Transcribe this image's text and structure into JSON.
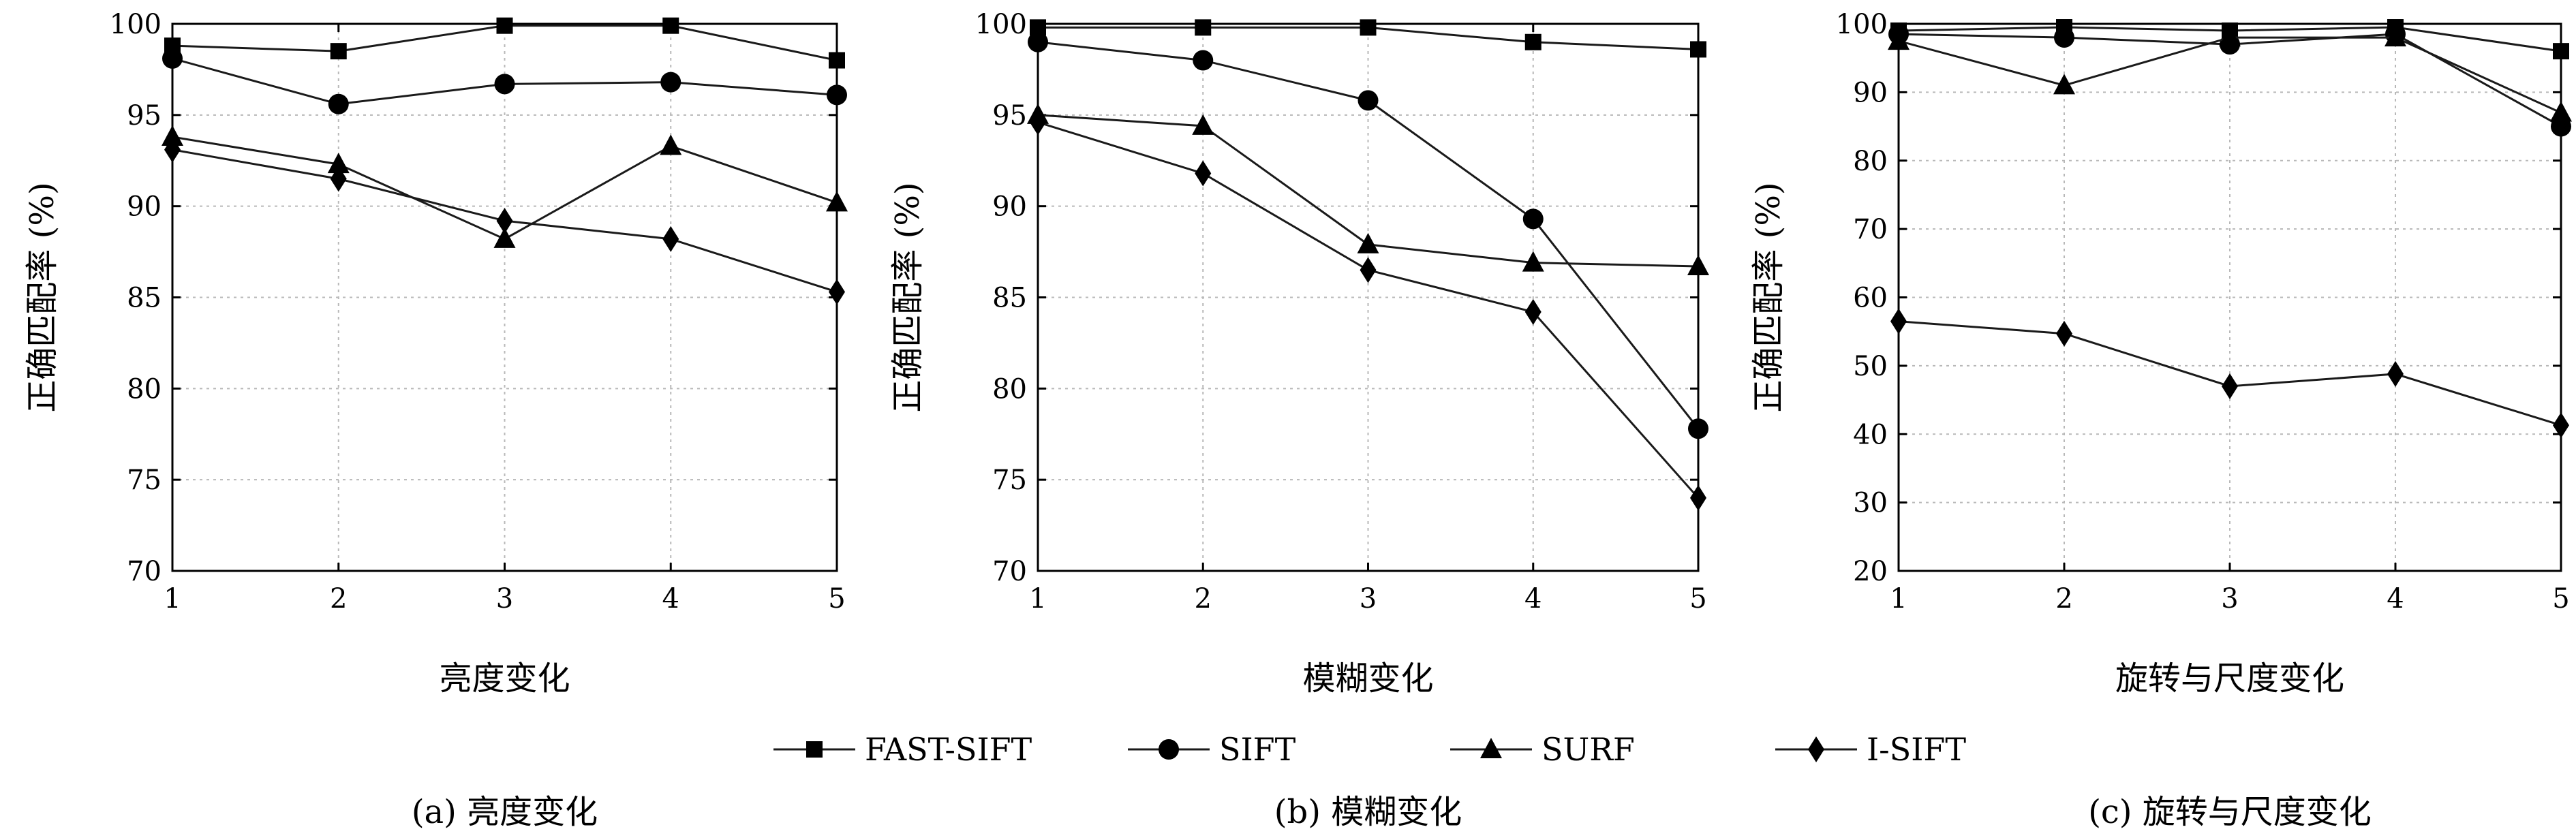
{
  "chart_data": [
    {
      "type": "line",
      "xlabel": "亮度变化",
      "ylabel": "正确匹配率 (%)",
      "caption": "(a) 亮度变化",
      "x": [
        1,
        2,
        3,
        4,
        5
      ],
      "xticks": [
        "1",
        "2",
        "3",
        "4",
        "5"
      ],
      "ylim": [
        70,
        100
      ],
      "yticks": [
        70,
        75,
        80,
        85,
        90,
        95,
        100
      ],
      "grid": true,
      "series": [
        {
          "name": "FAST-SIFT",
          "marker": "square",
          "values": [
            98.8,
            98.5,
            99.9,
            99.9,
            98.0
          ]
        },
        {
          "name": "SIFT",
          "marker": "circle",
          "values": [
            98.1,
            95.6,
            96.7,
            96.8,
            96.1
          ]
        },
        {
          "name": "SURF",
          "marker": "triangle",
          "values": [
            93.8,
            92.3,
            88.2,
            93.3,
            90.2
          ]
        },
        {
          "name": "I-SIFT",
          "marker": "diamond",
          "values": [
            93.1,
            91.5,
            89.2,
            88.2,
            85.3
          ]
        }
      ]
    },
    {
      "type": "line",
      "xlabel": "模糊变化",
      "ylabel": "正确匹配率 (%)",
      "caption": "(b) 模糊变化",
      "x": [
        1,
        2,
        3,
        4,
        5
      ],
      "xticks": [
        "1",
        "2",
        "3",
        "4",
        "5"
      ],
      "ylim": [
        70,
        100
      ],
      "yticks": [
        70,
        75,
        80,
        85,
        90,
        95,
        100
      ],
      "grid": true,
      "series": [
        {
          "name": "FAST-SIFT",
          "marker": "square",
          "values": [
            99.8,
            99.8,
            99.8,
            99.0,
            98.6
          ]
        },
        {
          "name": "SIFT",
          "marker": "circle",
          "values": [
            99.0,
            98.0,
            95.8,
            89.3,
            77.8
          ]
        },
        {
          "name": "SURF",
          "marker": "triangle",
          "values": [
            95.0,
            94.4,
            87.9,
            86.9,
            86.7
          ]
        },
        {
          "name": "I-SIFT",
          "marker": "diamond",
          "values": [
            94.6,
            91.8,
            86.5,
            84.2,
            74.0
          ]
        }
      ]
    },
    {
      "type": "line",
      "xlabel": "旋转与尺度变化",
      "ylabel": "正确匹配率 (%)",
      "caption": "(c) 旋转与尺度变化",
      "x": [
        1,
        2,
        3,
        4,
        5
      ],
      "xticks": [
        "1",
        "2",
        "3",
        "4",
        "5"
      ],
      "ylim": [
        20,
        100
      ],
      "yticks": [
        20,
        30,
        40,
        50,
        60,
        70,
        80,
        90,
        100
      ],
      "grid": true,
      "series": [
        {
          "name": "FAST-SIFT",
          "marker": "square",
          "values": [
            99.0,
            99.5,
            99.0,
            99.5,
            96.0
          ]
        },
        {
          "name": "SIFT",
          "marker": "circle",
          "values": [
            98.5,
            98.0,
            97.0,
            98.5,
            85.0
          ]
        },
        {
          "name": "SURF",
          "marker": "triangle",
          "values": [
            97.5,
            91.0,
            98.0,
            98.0,
            87.0
          ]
        },
        {
          "name": "I-SIFT",
          "marker": "diamond",
          "values": [
            56.5,
            54.7,
            47.0,
            48.8,
            41.3
          ]
        }
      ]
    }
  ],
  "legend": {
    "placement": "bottom-center",
    "entries": [
      {
        "name": "FAST-SIFT",
        "marker": "square"
      },
      {
        "name": "SIFT",
        "marker": "circle"
      },
      {
        "name": "SURF",
        "marker": "triangle"
      },
      {
        "name": "I-SIFT",
        "marker": "diamond"
      }
    ]
  },
  "colors": {
    "line": "#1a1a1a",
    "marker": "#000000",
    "grid": "#b8b8b8"
  }
}
